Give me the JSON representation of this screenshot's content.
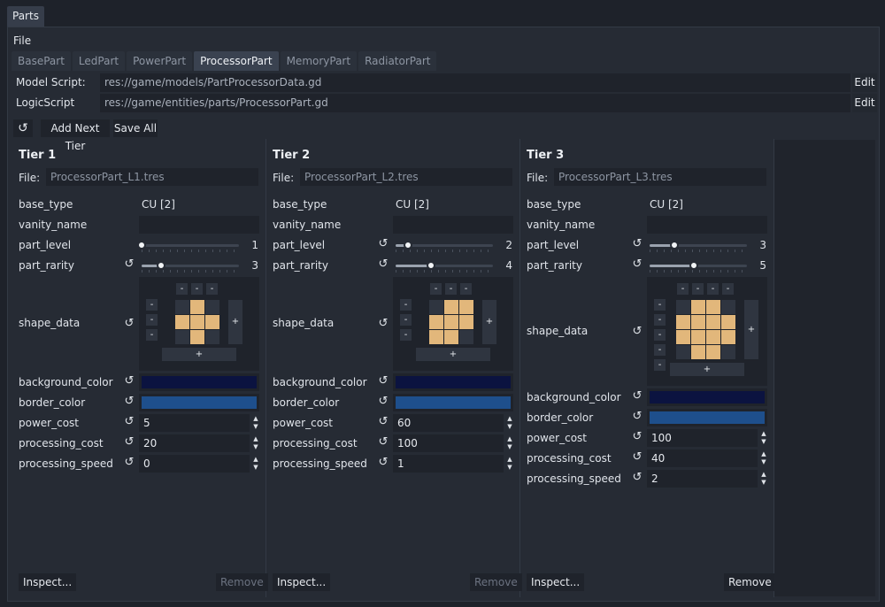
{
  "window": {
    "tab_label": "Parts"
  },
  "menu": {
    "file": "File"
  },
  "part_tabs": [
    {
      "label": "BasePart",
      "active": false
    },
    {
      "label": "LedPart",
      "active": false
    },
    {
      "label": "PowerPart",
      "active": false
    },
    {
      "label": "ProcessorPart",
      "active": true
    },
    {
      "label": "MemoryPart",
      "active": false
    },
    {
      "label": "RadiatorPart",
      "active": false
    }
  ],
  "scripts": {
    "model_label": "Model Script:",
    "model_path": "res://game/models/PartProcessorData.gd",
    "logic_label": "LogicScript",
    "logic_path": "res://game/entities/parts/ProcessorPart.gd",
    "edit_label": "Edit"
  },
  "toolbar": {
    "refresh_icon": "refresh-icon",
    "add_tier": "Add Next Tier",
    "save_all": "Save All"
  },
  "labels": {
    "file": "File:",
    "base_type": "base_type",
    "vanity_name": "vanity_name",
    "part_level": "part_level",
    "part_rarity": "part_rarity",
    "shape_data": "shape_data",
    "background_color": "background_color",
    "border_color": "border_color",
    "power_cost": "power_cost",
    "processing_cost": "processing_cost",
    "processing_speed": "processing_speed",
    "inspect": "Inspect...",
    "remove": "Remove",
    "minus": "-",
    "plus": "+",
    "reset_icon": "↺",
    "spin_up": "▲",
    "spin_down": "▼"
  },
  "tiers": [
    {
      "title": "Tier 1",
      "file": "ProcessorPart_L1.tres",
      "base_type": "CU [2]",
      "vanity_name": "",
      "part_level": 1,
      "part_level_fraction": 0.0,
      "part_rarity": 3,
      "part_rarity_fraction": 0.2,
      "shape": [
        [
          0,
          1,
          0
        ],
        [
          1,
          1,
          1
        ],
        [
          0,
          1,
          0
        ]
      ],
      "background_color": "#0b1340",
      "border_color": "#1e4f8c",
      "power_cost": "5",
      "processing_cost": "20",
      "processing_speed": "0",
      "remove_enabled": false
    },
    {
      "title": "Tier 2",
      "file": "ProcessorPart_L2.tres",
      "base_type": "CU [2]",
      "vanity_name": "",
      "part_level": 2,
      "part_level_fraction": 0.13,
      "part_rarity": 4,
      "part_rarity_fraction": 0.36,
      "shape": [
        [
          0,
          1,
          1
        ],
        [
          1,
          1,
          1
        ],
        [
          1,
          1,
          0
        ]
      ],
      "background_color": "#0b1340",
      "border_color": "#1e4f8c",
      "power_cost": "60",
      "processing_cost": "100",
      "processing_speed": "1",
      "remove_enabled": false
    },
    {
      "title": "Tier 3",
      "file": "ProcessorPart_L3.tres",
      "base_type": "CU [2]",
      "vanity_name": "",
      "part_level": 3,
      "part_level_fraction": 0.25,
      "part_rarity": 5,
      "part_rarity_fraction": 0.45,
      "shape": [
        [
          0,
          1,
          1,
          0
        ],
        [
          1,
          1,
          1,
          1
        ],
        [
          1,
          1,
          1,
          1
        ],
        [
          0,
          1,
          1,
          0
        ]
      ],
      "background_color": "#0b1340",
      "border_color": "#1e4f8c",
      "power_cost": "100",
      "processing_cost": "40",
      "processing_speed": "2",
      "remove_enabled": true
    }
  ]
}
